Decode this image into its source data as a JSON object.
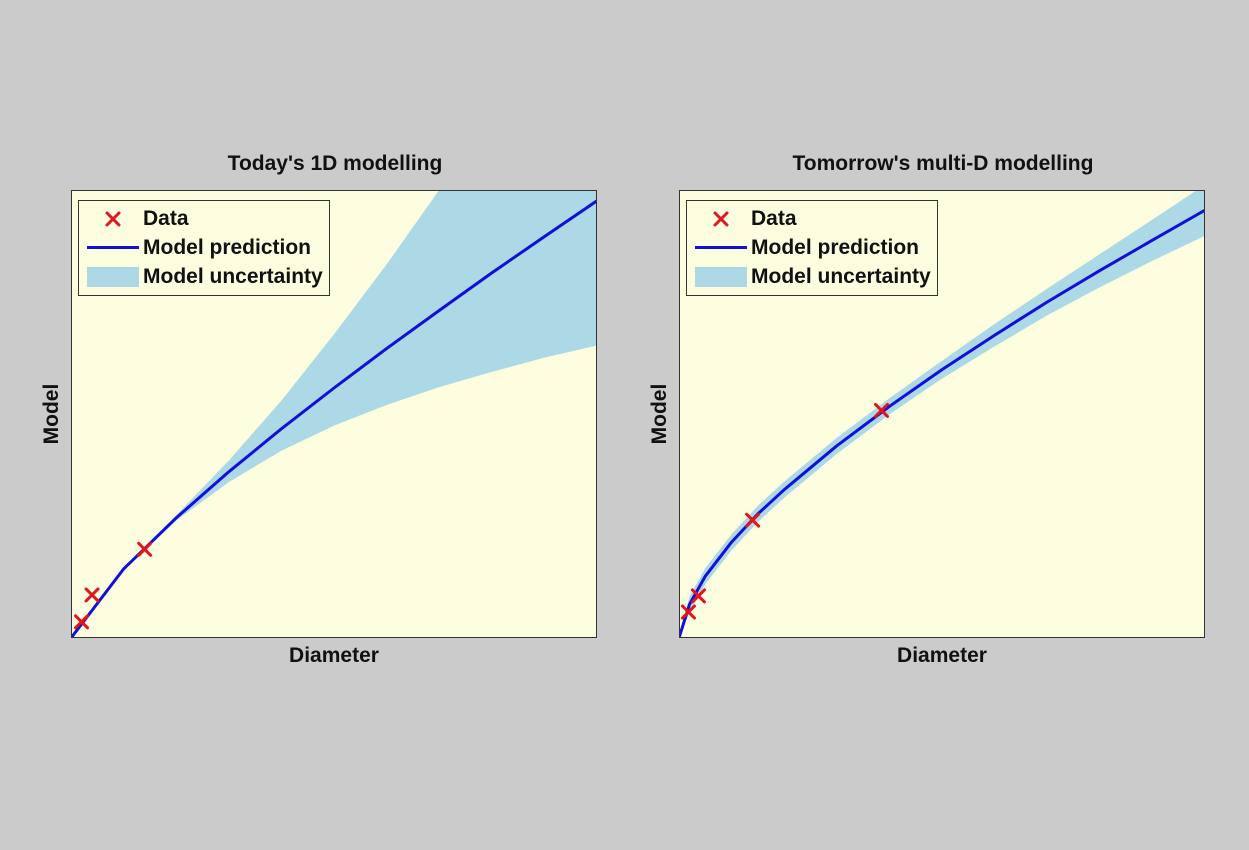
{
  "colors": {
    "background": "#cbcbcb",
    "plot_background": "#fdfde0",
    "data_marker": "#e4141c",
    "model_line": "#1010d8",
    "uncertainty_band": "#add8e6"
  },
  "chart_data": [
    {
      "type": "line",
      "title": "Today's 1D modelling",
      "xlabel": "Diameter",
      "ylabel": "Model",
      "xlim": [
        0,
        1
      ],
      "ylim": [
        0,
        1
      ],
      "ticks_shown": false,
      "grid": false,
      "legend": {
        "placement": "top-left",
        "entries": [
          "Data",
          "Model prediction",
          "Model uncertainty"
        ]
      },
      "series": [
        {
          "name": "Data",
          "kind": "markers",
          "marker": "x",
          "x": [
            0.02,
            0.04,
            0.14
          ],
          "y": [
            0.036,
            0.096,
            0.198
          ]
        },
        {
          "name": "Model prediction",
          "kind": "line",
          "x": [
            0,
            0.1,
            0.2,
            0.3,
            0.4,
            0.5,
            0.6,
            0.7,
            0.8,
            0.9,
            1.0
          ],
          "y": [
            0.0,
            0.154,
            0.268,
            0.371,
            0.467,
            0.558,
            0.646,
            0.731,
            0.815,
            0.896,
            0.976
          ]
        },
        {
          "name": "Model uncertainty",
          "kind": "band",
          "x": [
            0,
            0.1,
            0.2,
            0.3,
            0.4,
            0.5,
            0.6,
            0.7,
            0.8,
            0.9,
            1.0
          ],
          "lower": [
            0.0,
            0.152,
            0.262,
            0.348,
            0.418,
            0.474,
            0.52,
            0.56,
            0.594,
            0.626,
            0.653
          ],
          "upper": [
            0.0,
            0.156,
            0.274,
            0.396,
            0.53,
            0.678,
            0.834,
            1.0,
            1.17,
            1.34,
            1.52
          ]
        }
      ]
    },
    {
      "type": "line",
      "title": "Tomorrow's multi-D modelling",
      "xlabel": "Diameter",
      "ylabel": "Model",
      "xlim": [
        0,
        1
      ],
      "ylim": [
        0,
        1
      ],
      "ticks_shown": false,
      "grid": false,
      "legend": {
        "placement": "top-left",
        "entries": [
          "Data",
          "Model prediction",
          "Model uncertainty"
        ]
      },
      "series": [
        {
          "name": "Data",
          "kind": "markers",
          "marker": "x",
          "x": [
            0.018,
            0.037,
            0.14,
            0.385
          ],
          "y": [
            0.058,
            0.094,
            0.263,
            0.508
          ]
        },
        {
          "name": "Model prediction",
          "kind": "line",
          "x": [
            0,
            0.02,
            0.05,
            0.1,
            0.15,
            0.2,
            0.3,
            0.4,
            0.5,
            0.6,
            0.7,
            0.8,
            0.9,
            1.0
          ],
          "y": [
            0.0,
            0.075,
            0.138,
            0.214,
            0.277,
            0.331,
            0.429,
            0.517,
            0.599,
            0.676,
            0.75,
            0.82,
            0.888,
            0.955
          ],
          "band_halfwidth": [
            0.0,
            0.018,
            0.018,
            0.018,
            0.018,
            0.018,
            0.018,
            0.018,
            0.02,
            0.025,
            0.03,
            0.037,
            0.046,
            0.057
          ]
        }
      ]
    }
  ]
}
